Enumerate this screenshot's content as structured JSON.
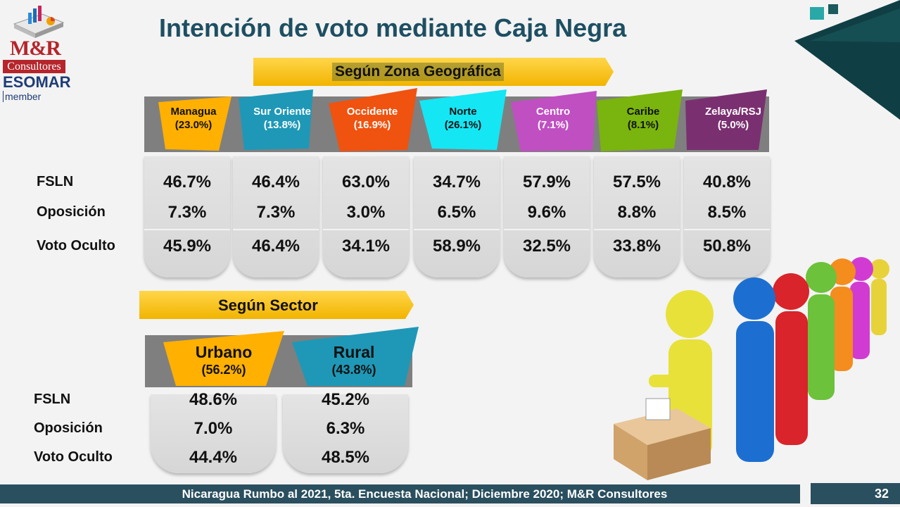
{
  "logo": {
    "brand": "M&R",
    "sub": "Consultores",
    "esomar": "ESOMAR",
    "member": "member"
  },
  "title": "Intención de voto mediante Caja Negra",
  "zona": {
    "banner": "Según Zona Geográfica",
    "regions": [
      {
        "name": "Managua",
        "pct": "(23.0%)",
        "color": "#ffb000",
        "text_color": "#111111"
      },
      {
        "name": "Sur Oriente",
        "pct": "(13.8%)",
        "color": "#1f98b7",
        "text_color": "#ffffff"
      },
      {
        "name": "Occidente",
        "pct": "(16.9%)",
        "color": "#f0520f",
        "text_color": "#ffffff"
      },
      {
        "name": "Norte",
        "pct": "(26.1%)",
        "color": "#14e6f4",
        "text_color": "#111111"
      },
      {
        "name": "Centro",
        "pct": "(7.1%)",
        "color": "#c04fc2",
        "text_color": "#ffffff"
      },
      {
        "name": "Caribe",
        "pct": "(8.1%)",
        "color": "#7ab40e",
        "text_color": "#111111"
      },
      {
        "name": "Zelaya/RSJ",
        "pct": "(5.0%)",
        "color": "#7a3070",
        "text_color": "#ffffff"
      }
    ],
    "row_labels": [
      "FSLN",
      "Oposición",
      "Voto Oculto"
    ],
    "values": [
      [
        "46.7%",
        "7.3%",
        "45.9%"
      ],
      [
        "46.4%",
        "7.3%",
        "46.4%"
      ],
      [
        "63.0%",
        "3.0%",
        "34.1%"
      ],
      [
        "34.7%",
        "6.5%",
        "58.9%"
      ],
      [
        "57.9%",
        "9.6%",
        "32.5%"
      ],
      [
        "57.5%",
        "8.8%",
        "33.8%"
      ],
      [
        "40.8%",
        "8.5%",
        "50.8%"
      ]
    ]
  },
  "sector": {
    "banner": "Según Sector",
    "sectors": [
      {
        "name": "Urbano",
        "pct": "(56.2%)",
        "color": "#ffb000",
        "text_color": "#111111"
      },
      {
        "name": "Rural",
        "pct": "(43.8%)",
        "color": "#1f98b7",
        "text_color": "#111111"
      }
    ],
    "row_labels": [
      "FSLN",
      "Oposición",
      "Voto Oculto"
    ],
    "values": [
      [
        "48.6%",
        "7.0%",
        "44.4%"
      ],
      [
        "45.2%",
        "6.3%",
        "48.5%"
      ]
    ]
  },
  "footer": {
    "text": "Nicaragua Rumbo al 2021, 5ta. Encuesta Nacional; Diciembre 2020; M&R Consultores",
    "page": "32"
  },
  "colors": {
    "title": "#1e4f62",
    "banner": "#ffc000",
    "footer": "#2a4f5f",
    "brand_red": "#b5252b",
    "esomar_blue": "#1e3c78"
  }
}
